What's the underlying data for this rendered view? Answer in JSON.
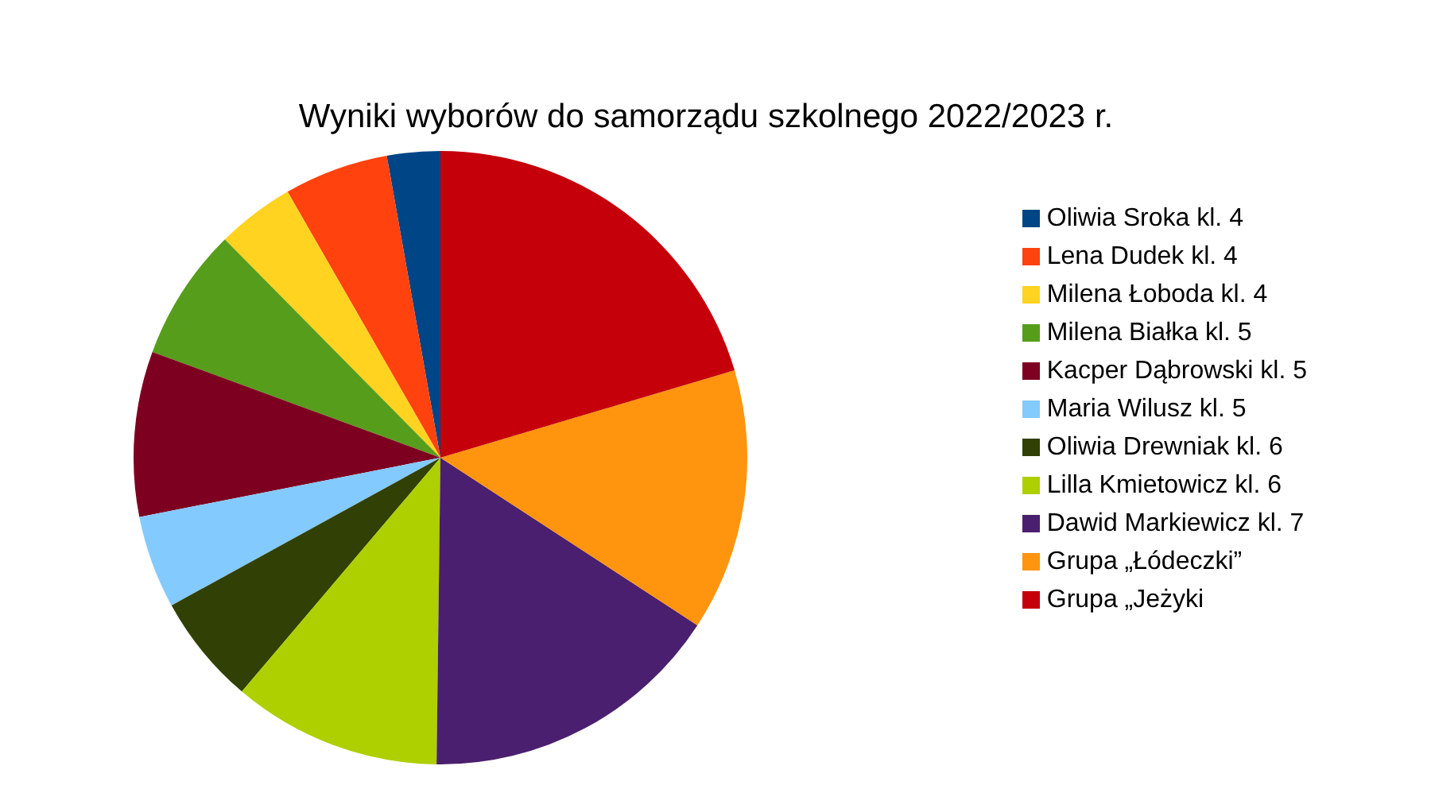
{
  "chart_data": {
    "type": "pie",
    "title": "Wyniki wyborów do samorządu szkolnego 2022/2023 r.",
    "categories": [
      "Oliwia Sroka kl. 4",
      "Lena Dudek kl. 4",
      "Milena Łoboda kl. 4",
      "Milena Białka kl. 5",
      "Kacper Dąbrowski kl. 5",
      "Maria Wilusz kl. 5",
      "Oliwia Drewniak kl. 6",
      "Lilla Kmietowicz kl. 6",
      "Dawid Markiewicz kl. 7",
      "Grupa „Łódeczki”",
      "Grupa „Jeżyki"
    ],
    "values": [
      2.8,
      5.5,
      4.1,
      7,
      8.7,
      4.9,
      5.8,
      11,
      16,
      13.8,
      20.4
    ],
    "colors": [
      "#004586",
      "#ff420e",
      "#ffd320",
      "#579d1c",
      "#7e0021",
      "#83caff",
      "#314004",
      "#aecf00",
      "#4b1f6f",
      "#ff950e",
      "#c5000b"
    ],
    "legend": "right"
  }
}
